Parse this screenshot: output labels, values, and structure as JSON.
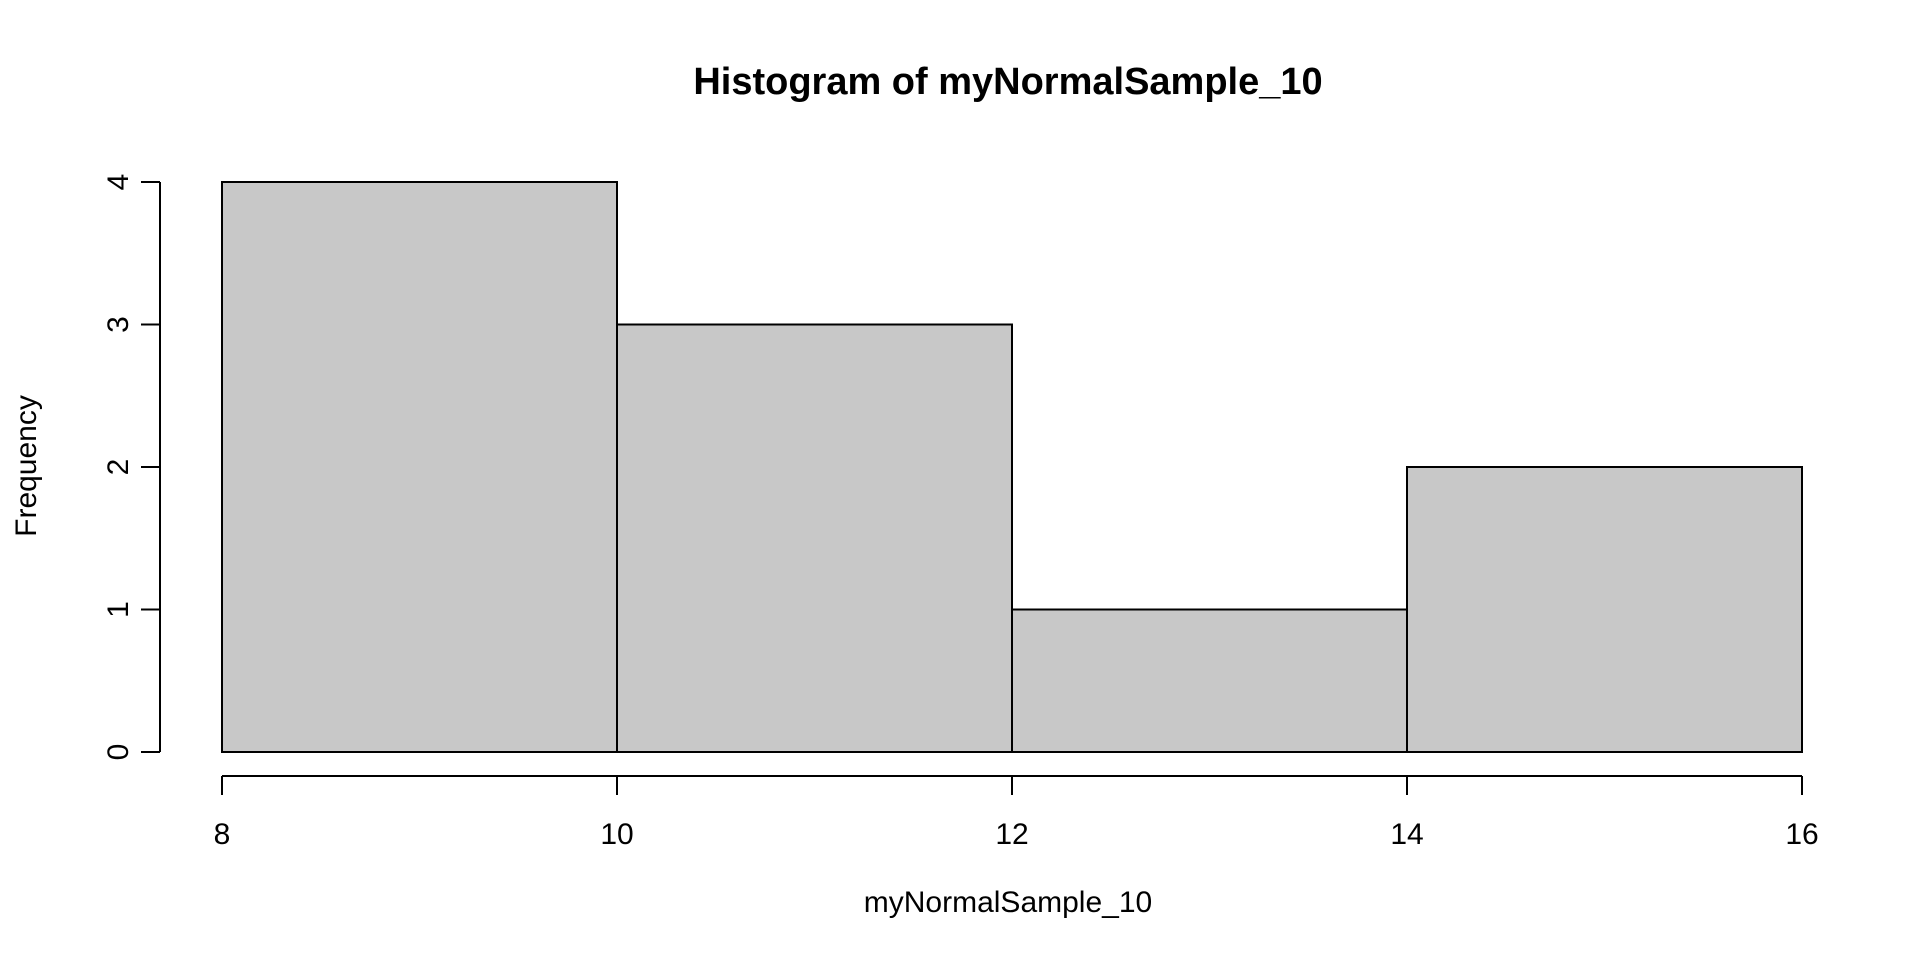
{
  "chart_data": {
    "type": "histogram",
    "title": "Histogram of myNormalSample_10",
    "xlabel": "myNormalSample_10",
    "ylabel": "Frequency",
    "bins": [
      {
        "start": 8,
        "end": 10,
        "count": 4
      },
      {
        "start": 10,
        "end": 12,
        "count": 3
      },
      {
        "start": 12,
        "end": 14,
        "count": 1
      },
      {
        "start": 14,
        "end": 16,
        "count": 2
      }
    ],
    "xlim": [
      8,
      16
    ],
    "ylim": [
      0,
      4
    ],
    "x_ticks": [
      "8",
      "10",
      "12",
      "14",
      "16"
    ],
    "y_ticks": [
      "0",
      "1",
      "2",
      "3",
      "4"
    ],
    "bar_fill": "#c8c8c8",
    "grid": false,
    "legend": "none"
  }
}
